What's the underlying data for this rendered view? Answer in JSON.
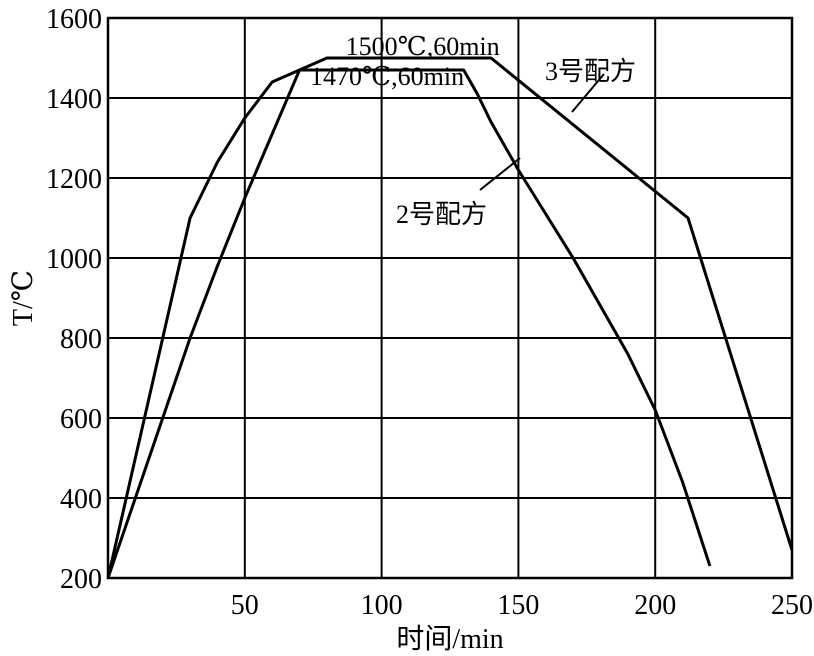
{
  "chart_data": {
    "type": "line",
    "xlabel": "时间/min",
    "ylabel": "T/℃",
    "xlim": [
      0,
      250
    ],
    "ylim": [
      200,
      1600
    ],
    "xticks": [
      50,
      100,
      150,
      200,
      250
    ],
    "yticks": [
      200,
      400,
      600,
      800,
      1000,
      1200,
      1400,
      1600
    ],
    "grid": true,
    "series": [
      {
        "name": "2号配方",
        "x": [
          0,
          10,
          20,
          30,
          40,
          50,
          60,
          70,
          130,
          135,
          140,
          150,
          160,
          170,
          180,
          190,
          200,
          210,
          220
        ],
        "y": [
          200,
          400,
          600,
          800,
          980,
          1150,
          1310,
          1470,
          1470,
          1410,
          1340,
          1220,
          1110,
          1000,
          880,
          760,
          620,
          440,
          230
        ]
      },
      {
        "name": "3号配方",
        "x": [
          0,
          30,
          40,
          50,
          60,
          80,
          140,
          212,
          250
        ],
        "y": [
          200,
          1100,
          1240,
          1350,
          1440,
          1500,
          1500,
          1100,
          270
        ]
      }
    ],
    "annotations": [
      {
        "text": "1500℃,60min",
        "x": 115,
        "y": 1530
      },
      {
        "text": "1470℃,60min",
        "x": 102,
        "y": 1455
      }
    ],
    "legend": [
      "3号配方",
      "2号配方"
    ]
  }
}
